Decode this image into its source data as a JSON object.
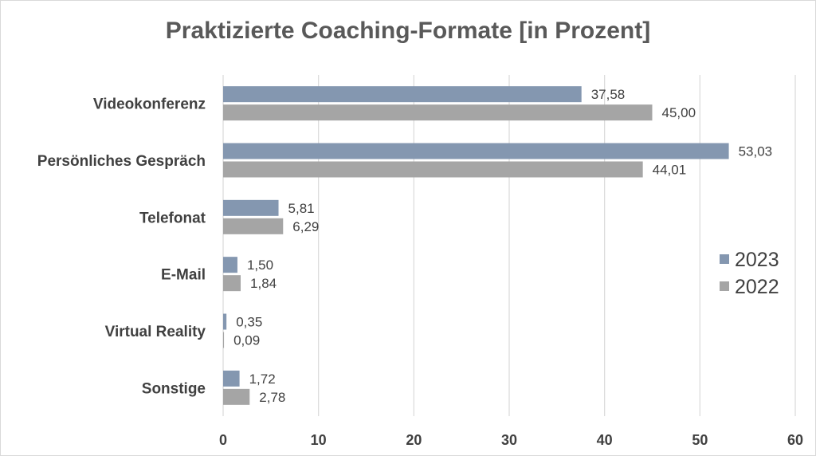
{
  "chart_data": {
    "type": "bar",
    "orientation": "horizontal",
    "title": "Praktizierte Coaching-Formate [in Prozent]",
    "categories": [
      "Videokonferenz",
      "Persönliches Gespräch",
      "Telefonat",
      "E-Mail",
      "Virtual Reality",
      "Sonstige"
    ],
    "series": [
      {
        "name": "2023",
        "color": "#8497b0",
        "values": [
          37.58,
          53.03,
          5.81,
          1.5,
          0.35,
          1.72
        ],
        "labels": [
          "37,58",
          "53,03",
          "5,81",
          "1,50",
          "0,35",
          "1,72"
        ]
      },
      {
        "name": "2022",
        "color": "#a5a5a5",
        "values": [
          45.0,
          44.01,
          6.29,
          1.84,
          0.09,
          2.78
        ],
        "labels": [
          "45,00",
          "44,01",
          "6,29",
          "1,84",
          "0,09",
          "2,78"
        ]
      }
    ],
    "xlim": [
      0,
      60
    ],
    "xticks": [
      "0",
      "10",
      "20",
      "30",
      "40",
      "50",
      "60"
    ],
    "grid": true,
    "legend_position": "right"
  }
}
